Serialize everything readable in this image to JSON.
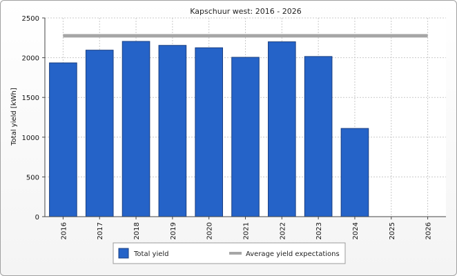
{
  "chart_data": {
    "type": "bar",
    "title": "Kapschuur west: 2016 - 2026",
    "ylabel": "Total yield [kWh]",
    "xlabel": "",
    "categories": [
      "2016",
      "2017",
      "2018",
      "2019",
      "2020",
      "2021",
      "2022",
      "2023",
      "2024",
      "2025",
      "2026"
    ],
    "series": [
      {
        "name": "Total yield",
        "type": "bar",
        "color": "#2563c8",
        "values": [
          1935,
          2095,
          2205,
          2155,
          2125,
          2005,
          2200,
          2015,
          1110,
          null,
          null
        ]
      },
      {
        "name": "Average yield expectations",
        "type": "line",
        "color": "#a6a6a6",
        "values": [
          2275,
          2275,
          2275,
          2275,
          2275,
          2275,
          2275,
          2275,
          2275,
          2275,
          2275
        ]
      }
    ],
    "ylim": [
      0,
      2500
    ],
    "yticks": [
      0,
      500,
      1000,
      1500,
      2000,
      2500
    ],
    "grid": true,
    "legend_position": "bottom-center"
  }
}
